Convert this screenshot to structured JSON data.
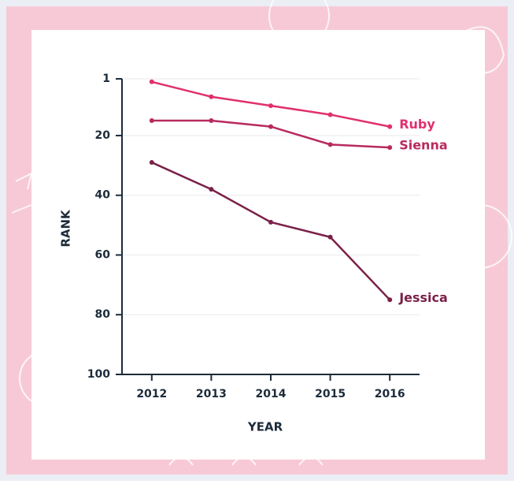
{
  "chart_data": {
    "type": "line",
    "categories": [
      "2012",
      "2013",
      "2014",
      "2015",
      "2016"
    ],
    "series": [
      {
        "name": "Ruby",
        "color": "#e0306e",
        "values": [
          2,
          7,
          10,
          13,
          17
        ]
      },
      {
        "name": "Sienna",
        "color": "#b82a5e",
        "values": [
          15,
          15,
          17,
          23,
          24
        ]
      },
      {
        "name": "Jessica",
        "color": "#7a2148",
        "values": [
          29,
          38,
          49,
          54,
          75
        ]
      }
    ],
    "ylim": [
      100,
      1
    ],
    "yticks": [
      1,
      20,
      40,
      60,
      80,
      100
    ],
    "xlabel": "YEAR",
    "ylabel": "RANK",
    "grid": true
  }
}
